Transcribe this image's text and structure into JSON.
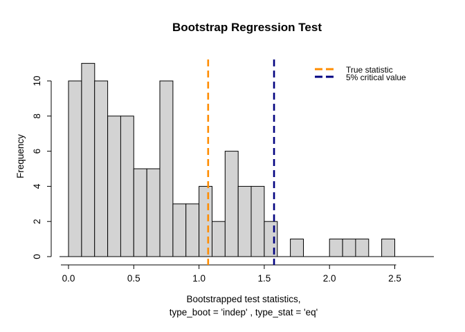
{
  "window": {
    "background": "#ffffff"
  },
  "chart_data": {
    "type": "bar",
    "subtype": "histogram",
    "title": "Bootstrap Regression Test",
    "xlabel": "Bootstrapped test statistics,",
    "xlabel_line2": "type_boot = 'indep' , type_stat = 'eq'",
    "ylabel": "Frequency",
    "bin_start": 0.0,
    "bin_width": 0.1,
    "counts": [
      10,
      11,
      10,
      8,
      8,
      5,
      5,
      10,
      3,
      3,
      4,
      2,
      6,
      4,
      4,
      2,
      0,
      1,
      0,
      0,
      1,
      1,
      1,
      0,
      1
    ],
    "total_samples": 100,
    "xlim": [
      0.0,
      2.5
    ],
    "ylim": [
      0,
      11
    ],
    "x_tick_values": [
      0.0,
      0.5,
      1.0,
      1.5,
      2.0,
      2.5
    ],
    "x_tick_labels": [
      "0.0",
      "0.5",
      "1.0",
      "1.5",
      "2.0",
      "2.5"
    ],
    "y_tick_values": [
      0,
      2,
      4,
      6,
      8,
      10
    ],
    "y_tick_labels": [
      "0",
      "2",
      "4",
      "6",
      "8",
      "10"
    ],
    "grid": false,
    "bar_fill": "#d3d3d3",
    "bar_border": "#000000",
    "axis_color": "#000000",
    "vlines": [
      {
        "name": "true-statistic",
        "value": 1.07,
        "color": "#ff8c00",
        "style": "dashed"
      },
      {
        "name": "critical-value-5pct",
        "value": 1.575,
        "color": "#000080",
        "style": "dashed"
      }
    ],
    "legend": {
      "position": "topright",
      "border": "none",
      "items": [
        {
          "label": "True statistic",
          "color": "#ff8c00",
          "line_style": "dashed"
        },
        {
          "label": "5% critical value",
          "color": "#000080",
          "line_style": "dashed"
        }
      ]
    }
  }
}
